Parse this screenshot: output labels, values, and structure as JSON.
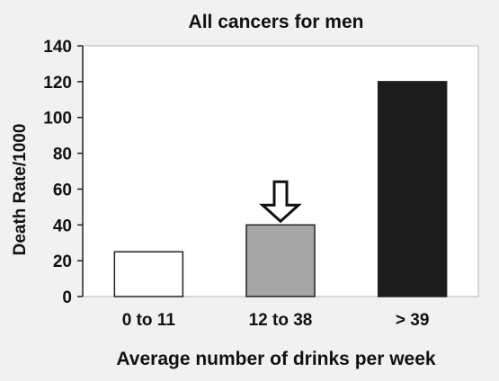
{
  "chart_data": {
    "type": "bar",
    "title": "All cancers for men",
    "xlabel": "Average number of drinks per week",
    "ylabel": "Death Rate/1000",
    "categories": [
      "0 to 11",
      "12 to 38",
      "> 39"
    ],
    "values": [
      25,
      40,
      120
    ],
    "bar_colors": [
      "#ffffff",
      "#a6a6a6",
      "#1c1c1c"
    ],
    "ylim": [
      0,
      140
    ],
    "yticks": [
      0,
      20,
      40,
      60,
      80,
      100,
      120,
      140
    ],
    "grid": false,
    "legend": "none",
    "annotations": [
      {
        "type": "down-arrow",
        "category": "12 to 38"
      }
    ]
  }
}
